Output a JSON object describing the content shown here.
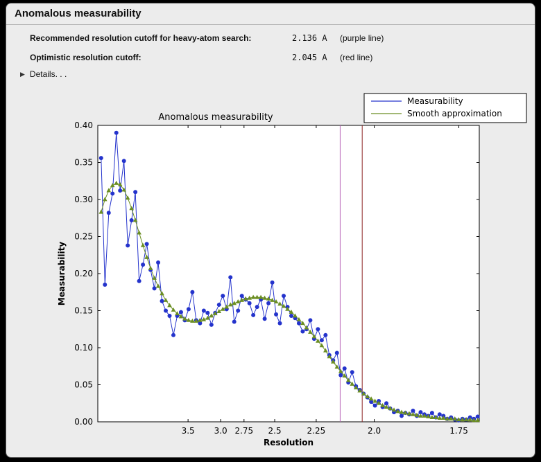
{
  "window": {
    "title": "Anomalous measurability"
  },
  "summary": {
    "rows": [
      {
        "label": "Recommended resolution cutoff for heavy-atom search:",
        "value": "2.136 A",
        "note": "(purple line)"
      },
      {
        "label": "Optimistic resolution cutoff:",
        "value": "2.045 A",
        "note": "(red line)"
      }
    ],
    "details_label": "Details. . ."
  },
  "chart_data": {
    "type": "line",
    "title": "Anomalous measurability",
    "xlabel": "Resolution",
    "ylabel": "Measurability",
    "legend": {
      "position": "upper right"
    },
    "x_axis": {
      "transform": "1/d^2",
      "ticks_d": [
        3.5,
        3.0,
        2.75,
        2.5,
        2.25,
        2.0,
        1.75
      ],
      "tick_labels": [
        "3.5",
        "3.0",
        "2.75",
        "2.5",
        "2.25",
        "2.0",
        "1.75"
      ],
      "range_s2": [
        0,
        0.345
      ]
    },
    "y_axis": {
      "ticks": [
        0.0,
        0.05,
        0.1,
        0.15,
        0.2,
        0.25,
        0.3,
        0.35,
        0.4
      ],
      "tick_labels": [
        "0.00",
        "0.05",
        "0.10",
        "0.15",
        "0.20",
        "0.25",
        "0.30",
        "0.35",
        "0.40"
      ],
      "range": [
        0,
        0.4
      ]
    },
    "points_s2": {
      "start": 0.003,
      "step": 0.00344,
      "n": 100
    },
    "series": [
      {
        "name": "Measurability",
        "color": "#2433cc",
        "marker": "circle",
        "values": [
          0.356,
          0.185,
          0.282,
          0.308,
          0.39,
          0.312,
          0.352,
          0.238,
          0.272,
          0.31,
          0.19,
          0.212,
          0.24,
          0.205,
          0.18,
          0.215,
          0.163,
          0.15,
          0.143,
          0.117,
          0.143,
          0.148,
          0.137,
          0.152,
          0.175,
          0.137,
          0.133,
          0.15,
          0.147,
          0.131,
          0.147,
          0.158,
          0.17,
          0.152,
          0.195,
          0.135,
          0.15,
          0.17,
          0.165,
          0.16,
          0.144,
          0.155,
          0.165,
          0.139,
          0.16,
          0.188,
          0.145,
          0.133,
          0.17,
          0.155,
          0.143,
          0.14,
          0.133,
          0.122,
          0.125,
          0.137,
          0.112,
          0.125,
          0.11,
          0.117,
          0.09,
          0.083,
          0.093,
          0.063,
          0.072,
          0.053,
          0.067,
          0.048,
          0.043,
          0.038,
          0.033,
          0.027,
          0.022,
          0.028,
          0.02,
          0.025,
          0.018,
          0.013,
          0.015,
          0.008,
          0.012,
          0.01,
          0.015,
          0.008,
          0.013,
          0.01,
          0.008,
          0.012,
          0.006,
          0.01,
          0.008,
          0.004,
          0.006,
          0.003,
          0.002,
          0.004,
          0.003,
          0.006,
          0.004,
          0.007
        ]
      },
      {
        "name": "Smooth approximation",
        "color": "#6b8e23",
        "marker": "triangle",
        "values": [
          0.283,
          0.3,
          0.312,
          0.319,
          0.322,
          0.32,
          0.313,
          0.302,
          0.288,
          0.272,
          0.255,
          0.238,
          0.222,
          0.207,
          0.194,
          0.183,
          0.173,
          0.164,
          0.157,
          0.151,
          0.146,
          0.142,
          0.139,
          0.137,
          0.136,
          0.136,
          0.137,
          0.138,
          0.14,
          0.143,
          0.146,
          0.149,
          0.152,
          0.155,
          0.158,
          0.16,
          0.162,
          0.164,
          0.166,
          0.167,
          0.168,
          0.168,
          0.168,
          0.167,
          0.166,
          0.164,
          0.162,
          0.159,
          0.156,
          0.152,
          0.148,
          0.143,
          0.138,
          0.133,
          0.127,
          0.121,
          0.115,
          0.109,
          0.103,
          0.096,
          0.088,
          0.081,
          0.074,
          0.068,
          0.062,
          0.056,
          0.051,
          0.046,
          0.042,
          0.038,
          0.034,
          0.031,
          0.028,
          0.025,
          0.022,
          0.02,
          0.018,
          0.016,
          0.014,
          0.013,
          0.012,
          0.011,
          0.01,
          0.009,
          0.008,
          0.008,
          0.007,
          0.006,
          0.006,
          0.005,
          0.005,
          0.004,
          0.004,
          0.004,
          0.003,
          0.003,
          0.003,
          0.003,
          0.002,
          0.002
        ]
      }
    ],
    "vlines": [
      {
        "label": "purple line",
        "d": 2.136,
        "color": "#b55fb5"
      },
      {
        "label": "red line",
        "d": 2.045,
        "color": "#8b2323"
      }
    ]
  }
}
